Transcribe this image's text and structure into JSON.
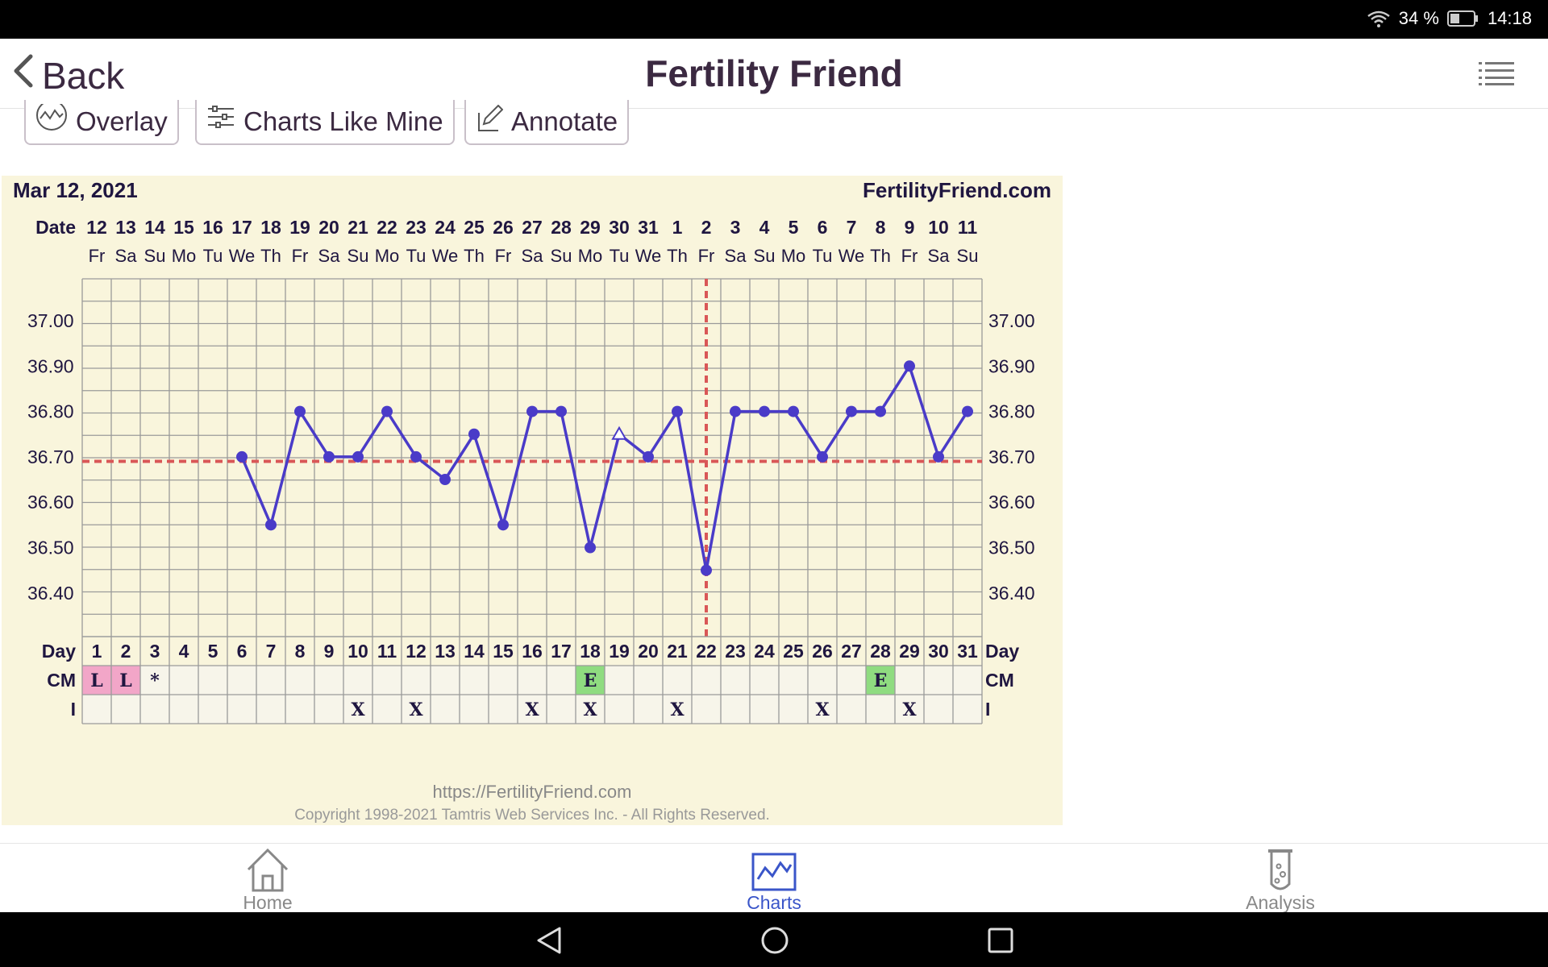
{
  "status_bar": {
    "battery": "34 %",
    "time": "14:18"
  },
  "header": {
    "back_label": "Back",
    "title": "Fertility Friend"
  },
  "toolbar": {
    "overlay_label": "Overlay",
    "charts_like_mine_label": "Charts Like Mine",
    "annotate_label": "Annotate"
  },
  "chart_data": {
    "type": "line",
    "title": "Mar 12, 2021",
    "site": "FertilityFriend.com",
    "date_row_label": "Date",
    "day_row_label": "Day",
    "cm_row_label": "CM",
    "i_row_label": "I",
    "dates": [
      "12",
      "13",
      "14",
      "15",
      "16",
      "17",
      "18",
      "19",
      "20",
      "21",
      "22",
      "23",
      "24",
      "25",
      "26",
      "27",
      "28",
      "29",
      "30",
      "31",
      "1",
      "2",
      "3",
      "4",
      "5",
      "6",
      "7",
      "8",
      "9",
      "10",
      "11"
    ],
    "weekdays": [
      "Fr",
      "Sa",
      "Su",
      "Mo",
      "Tu",
      "We",
      "Th",
      "Fr",
      "Sa",
      "Su",
      "Mo",
      "Tu",
      "We",
      "Th",
      "Fr",
      "Sa",
      "Su",
      "Mo",
      "Tu",
      "We",
      "Th",
      "Fr",
      "Sa",
      "Su",
      "Mo",
      "Tu",
      "We",
      "Th",
      "Fr",
      "Sa",
      "Su"
    ],
    "days": [
      1,
      2,
      3,
      4,
      5,
      6,
      7,
      8,
      9,
      10,
      11,
      12,
      13,
      14,
      15,
      16,
      17,
      18,
      19,
      20,
      21,
      22,
      23,
      24,
      25,
      26,
      27,
      28,
      29,
      30,
      31
    ],
    "temperatures": [
      null,
      null,
      null,
      null,
      null,
      36.7,
      36.55,
      36.8,
      36.7,
      36.7,
      36.8,
      36.7,
      36.65,
      36.75,
      36.55,
      36.8,
      36.8,
      36.5,
      36.75,
      36.7,
      36.8,
      36.45,
      36.8,
      36.8,
      36.8,
      36.7,
      36.8,
      36.8,
      36.9,
      36.7,
      36.8
    ],
    "open_marker_days": [
      19
    ],
    "y_ticks": [
      "37.00",
      "36.90",
      "36.80",
      "36.70",
      "36.60",
      "36.50",
      "36.40"
    ],
    "ylim": [
      36.32,
      37.09
    ],
    "coverline": 36.69,
    "ovulation_day": 22,
    "cm": [
      "L",
      "L",
      "*",
      "",
      "",
      "",
      "",
      "",
      "",
      "",
      "",
      "",
      "",
      "",
      "",
      "",
      "",
      "E",
      "",
      "",
      "",
      "",
      "",
      "",
      "",
      "",
      "",
      "E",
      "",
      "",
      ""
    ],
    "intercourse": [
      "",
      "",
      "",
      "",
      "",
      "",
      "",
      "",
      "",
      "X",
      "",
      "X",
      "",
      "",
      "",
      "X",
      "",
      "X",
      "",
      "",
      "X",
      "",
      "",
      "",
      "",
      "X",
      "",
      "",
      "X",
      "",
      ""
    ],
    "colors": {
      "line": "#4a3bc8",
      "coverline": "#d95757",
      "cm_L": "#f2a6c8",
      "cm_E": "#8fdc80",
      "background": "#f9f5dc"
    },
    "footer_url": "https://FertilityFriend.com",
    "footer_copyright": "Copyright 1998-2021 Tamtris Web Services Inc. - All Rights Reserved."
  },
  "bottom_nav": [
    {
      "label": "Home",
      "icon": "home-icon",
      "active": false
    },
    {
      "label": "Charts",
      "icon": "chart-icon",
      "active": true
    },
    {
      "label": "Analysis",
      "icon": "test-tube-icon",
      "active": false
    }
  ]
}
